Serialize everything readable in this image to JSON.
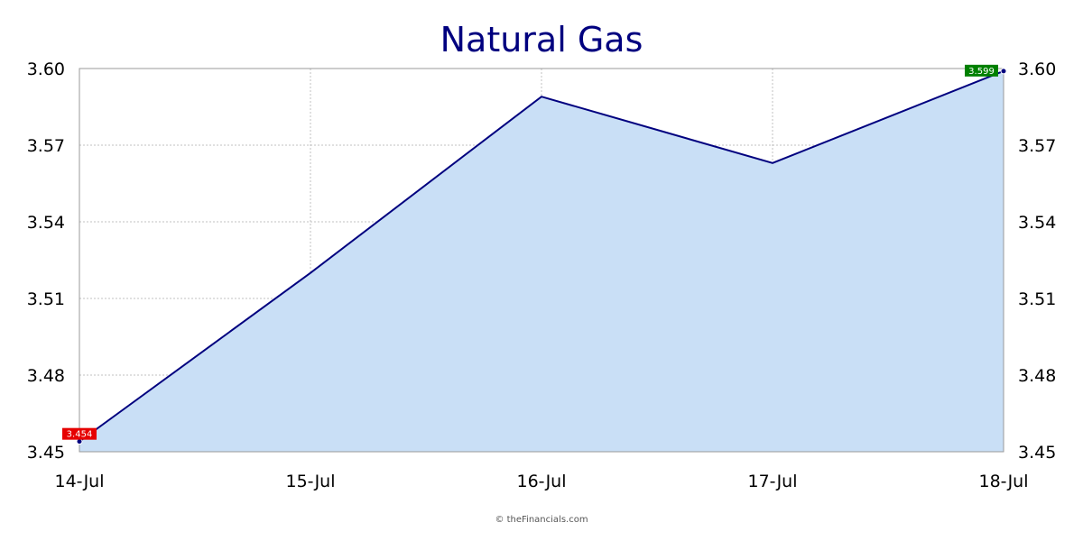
{
  "chart_data": {
    "type": "area",
    "title": "Natural Gas",
    "categories": [
      "14-Jul",
      "15-Jul",
      "16-Jul",
      "17-Jul",
      "18-Jul"
    ],
    "values": [
      3.454,
      3.52,
      3.589,
      3.563,
      3.599
    ],
    "ylim": [
      3.45,
      3.6
    ],
    "yticks": [
      "3.45",
      "3.48",
      "3.51",
      "3.54",
      "3.57",
      "3.60"
    ],
    "grid": true,
    "low_label": "3.454",
    "high_label": "3.599",
    "colors": {
      "line": "#00007f",
      "fill": "#c9dff6",
      "grid": "#c0c0c0",
      "low_badge": "#e60000",
      "high_badge": "#008000"
    }
  },
  "footer": "© theFinancials.com"
}
